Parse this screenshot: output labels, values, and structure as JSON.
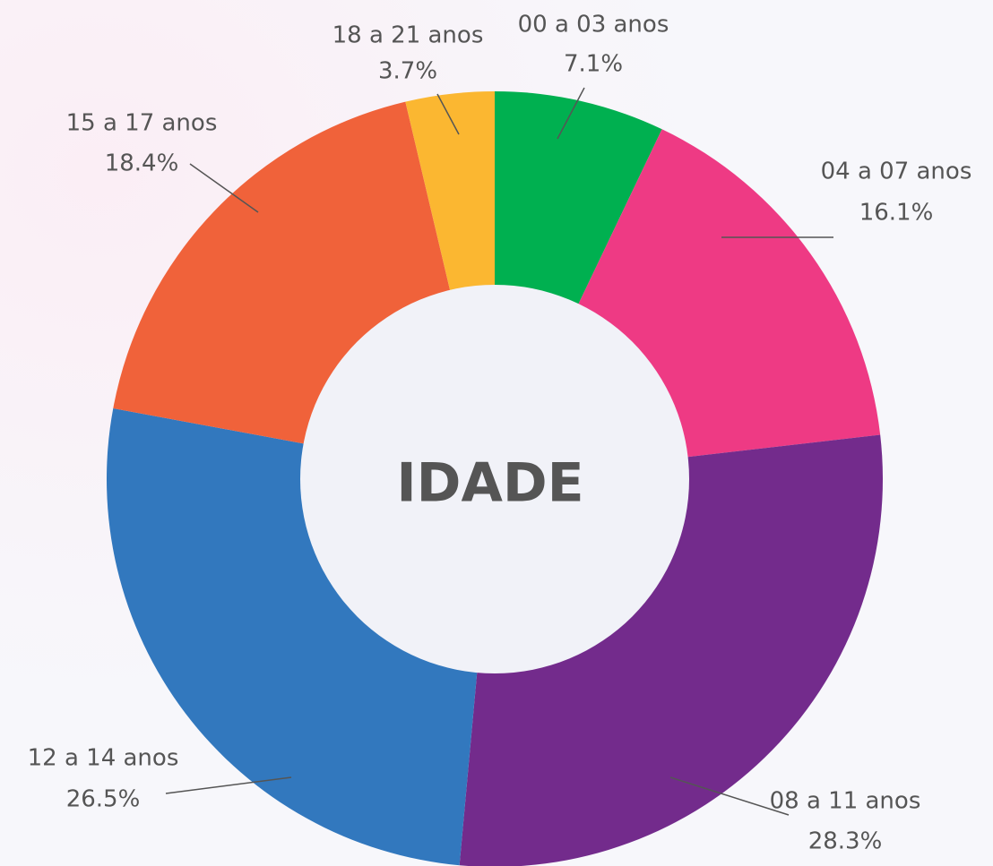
{
  "chart_data": {
    "type": "donut",
    "center_label": "IDADE",
    "categories": [
      "00 a 03 anos",
      "04 a 07 anos",
      "08 a 11 anos",
      "12 a 14 anos",
      "15 a 17 anos",
      "18 a 21 anos"
    ],
    "values": [
      7.1,
      16.1,
      28.3,
      26.5,
      18.4,
      3.7
    ],
    "value_labels": [
      "7.1%",
      "16.1%",
      "28.3%",
      "26.5%",
      "18.4%",
      "3.7%"
    ],
    "colors": [
      "#00b050",
      "#ee3a84",
      "#732b8c",
      "#3278be",
      "#f0623a",
      "#fbb731"
    ]
  }
}
